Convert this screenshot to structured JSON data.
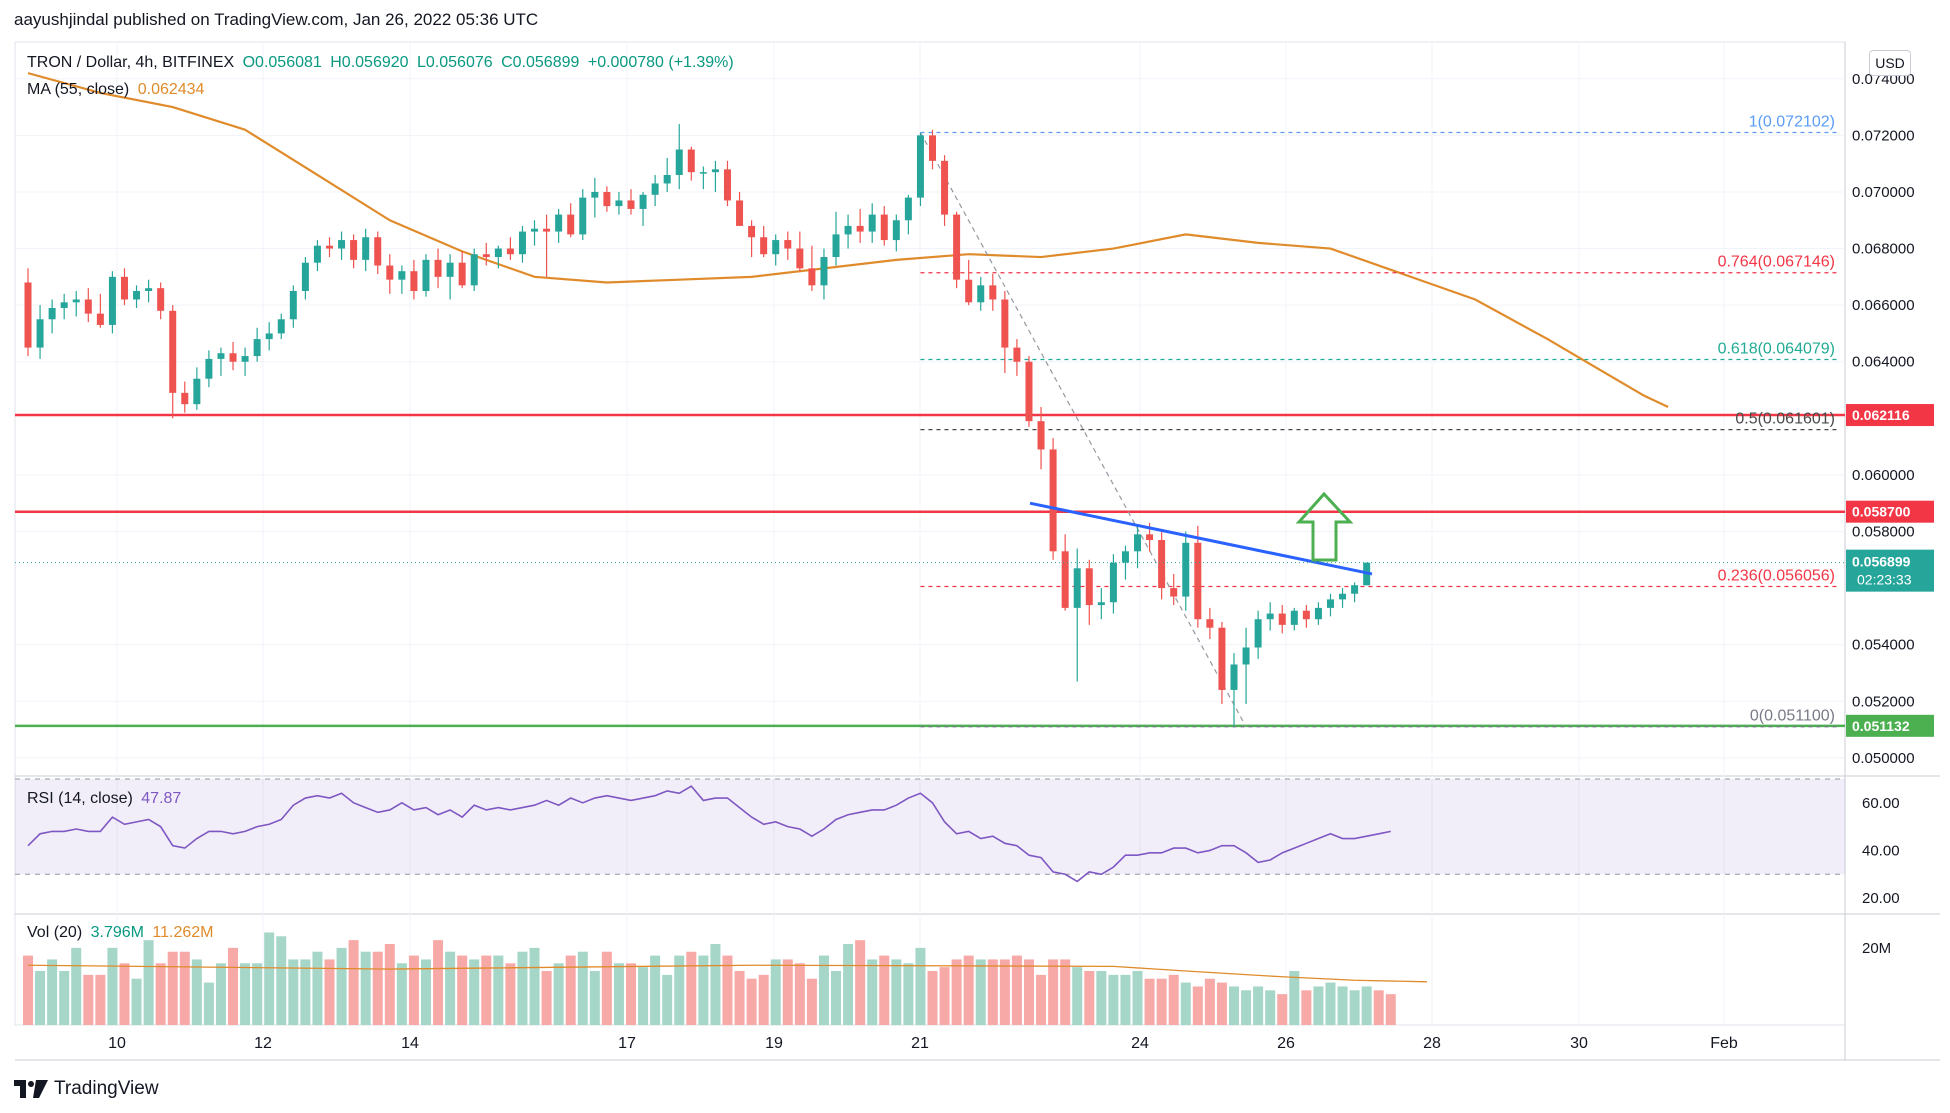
{
  "header": {
    "published_by": "aayushjindal published on TradingView.com, Jan 26, 2022 05:36 UTC"
  },
  "legend": {
    "symbol": "TRON / Dollar, 4h, BITFINEX",
    "open": "O0.056081",
    "high": "H0.056920",
    "low": "L0.056076",
    "close": "C0.056899",
    "change": "+0.000780 (+1.39%)",
    "ma_label": "MA (55, close)",
    "ma_value": "0.062434",
    "rsi_label": "RSI (14, close)",
    "rsi_value": "47.87",
    "vol_label": "Vol (20)",
    "vol_value": "3.796M",
    "vol_ma_value": "11.262M"
  },
  "currency_button": "USD",
  "brand": "TradingView",
  "colors": {
    "up": "#26a69a",
    "down": "#ef5350",
    "ma": "#e08b2b",
    "resistance": "#f23645",
    "support": "#4caf50",
    "trendline": "#2962ff",
    "rsi_line": "#7e57c2",
    "arrow": "#4caf50"
  },
  "chart_data": [
    {
      "type": "candlestick",
      "title": "",
      "x_ticks": [
        "10",
        "12",
        "14",
        "17",
        "19",
        "21",
        "24",
        "26",
        "28",
        "30",
        "Feb"
      ],
      "y_ticks": [
        "0.074000",
        "0.072000",
        "0.070000",
        "0.068000",
        "0.066000",
        "0.064000",
        "0.060000",
        "0.058000",
        "0.054000",
        "0.052000",
        "0.050000"
      ],
      "ylim": [
        0.0495,
        0.0753
      ],
      "candles_ohlc": [
        [
          0.0668,
          0.0673,
          0.0642,
          0.0645
        ],
        [
          0.0645,
          0.066,
          0.0641,
          0.0655
        ],
        [
          0.0655,
          0.0662,
          0.065,
          0.0659
        ],
        [
          0.0659,
          0.0664,
          0.0655,
          0.0661
        ],
        [
          0.0661,
          0.0665,
          0.0656,
          0.0662
        ],
        [
          0.0662,
          0.0666,
          0.0654,
          0.0657
        ],
        [
          0.0657,
          0.0664,
          0.0652,
          0.0653
        ],
        [
          0.0653,
          0.0672,
          0.065,
          0.067
        ],
        [
          0.067,
          0.0673,
          0.066,
          0.0662
        ],
        [
          0.0662,
          0.0667,
          0.0659,
          0.0665
        ],
        [
          0.0665,
          0.0669,
          0.0661,
          0.0666
        ],
        [
          0.0666,
          0.0668,
          0.0655,
          0.0658
        ],
        [
          0.0658,
          0.066,
          0.062,
          0.0629
        ],
        [
          0.0629,
          0.0633,
          0.0622,
          0.0625
        ],
        [
          0.0625,
          0.0638,
          0.0623,
          0.0634
        ],
        [
          0.0634,
          0.0644,
          0.0631,
          0.0641
        ],
        [
          0.0641,
          0.0645,
          0.0635,
          0.0643
        ],
        [
          0.0643,
          0.0647,
          0.0637,
          0.064
        ],
        [
          0.064,
          0.0645,
          0.0635,
          0.0642
        ],
        [
          0.0642,
          0.0652,
          0.064,
          0.0648
        ],
        [
          0.0648,
          0.0654,
          0.0644,
          0.065
        ],
        [
          0.065,
          0.0657,
          0.0648,
          0.0655
        ],
        [
          0.0655,
          0.0667,
          0.0652,
          0.0665
        ],
        [
          0.0665,
          0.0677,
          0.0662,
          0.0675
        ],
        [
          0.0675,
          0.0683,
          0.0672,
          0.0681
        ],
        [
          0.0681,
          0.0684,
          0.0677,
          0.068
        ],
        [
          0.068,
          0.0686,
          0.0676,
          0.0683
        ],
        [
          0.0683,
          0.0685,
          0.0673,
          0.0676
        ],
        [
          0.0676,
          0.0687,
          0.0672,
          0.0684
        ],
        [
          0.0684,
          0.0686,
          0.0671,
          0.0674
        ],
        [
          0.0674,
          0.0678,
          0.0664,
          0.0669
        ],
        [
          0.0669,
          0.0674,
          0.0664,
          0.0672
        ],
        [
          0.0672,
          0.0676,
          0.0662,
          0.0665
        ],
        [
          0.0665,
          0.0678,
          0.0663,
          0.0676
        ],
        [
          0.0676,
          0.068,
          0.0666,
          0.067
        ],
        [
          0.067,
          0.0678,
          0.0662,
          0.0675
        ],
        [
          0.0675,
          0.0679,
          0.0666,
          0.0667
        ],
        [
          0.0667,
          0.068,
          0.0665,
          0.0678
        ],
        [
          0.0678,
          0.0682,
          0.0674,
          0.0677
        ],
        [
          0.0677,
          0.0681,
          0.0673,
          0.068
        ],
        [
          0.068,
          0.0684,
          0.0676,
          0.0678
        ],
        [
          0.0678,
          0.0688,
          0.0675,
          0.0686
        ],
        [
          0.0686,
          0.069,
          0.0681,
          0.0687
        ],
        [
          0.0687,
          0.0692,
          0.067,
          0.0686
        ],
        [
          0.0686,
          0.0694,
          0.0682,
          0.0692
        ],
        [
          0.0692,
          0.0696,
          0.0684,
          0.0685
        ],
        [
          0.0685,
          0.0701,
          0.0683,
          0.0698
        ],
        [
          0.0698,
          0.0705,
          0.0691,
          0.07
        ],
        [
          0.07,
          0.0702,
          0.0693,
          0.0695
        ],
        [
          0.0695,
          0.07,
          0.0692,
          0.0697
        ],
        [
          0.0697,
          0.0701,
          0.0692,
          0.0694
        ],
        [
          0.0694,
          0.07,
          0.0688,
          0.0699
        ],
        [
          0.0699,
          0.0706,
          0.0695,
          0.0703
        ],
        [
          0.0703,
          0.0712,
          0.07,
          0.0706
        ],
        [
          0.0706,
          0.0724,
          0.0701,
          0.0715
        ],
        [
          0.0715,
          0.0716,
          0.0704,
          0.0707
        ],
        [
          0.0707,
          0.0709,
          0.0701,
          0.0707
        ],
        [
          0.0707,
          0.0711,
          0.07,
          0.0708
        ],
        [
          0.0708,
          0.0711,
          0.0695,
          0.0697
        ],
        [
          0.0697,
          0.07,
          0.0688,
          0.0688
        ],
        [
          0.0688,
          0.069,
          0.0677,
          0.0684
        ],
        [
          0.0684,
          0.0688,
          0.0677,
          0.0678
        ],
        [
          0.0678,
          0.0685,
          0.0674,
          0.0683
        ],
        [
          0.0683,
          0.0686,
          0.0676,
          0.068
        ],
        [
          0.068,
          0.0686,
          0.0672,
          0.0673
        ],
        [
          0.0673,
          0.0681,
          0.0665,
          0.0667
        ],
        [
          0.0667,
          0.068,
          0.0662,
          0.0677
        ],
        [
          0.0677,
          0.0693,
          0.0674,
          0.0685
        ],
        [
          0.0685,
          0.0692,
          0.068,
          0.0688
        ],
        [
          0.0688,
          0.0694,
          0.0682,
          0.0686
        ],
        [
          0.0686,
          0.0696,
          0.0682,
          0.0692
        ],
        [
          0.0692,
          0.0695,
          0.0681,
          0.0683
        ],
        [
          0.0683,
          0.0692,
          0.0679,
          0.069
        ],
        [
          0.069,
          0.0699,
          0.0685,
          0.0698
        ],
        [
          0.0698,
          0.0721,
          0.0695,
          0.072
        ],
        [
          0.072,
          0.0722,
          0.0708,
          0.0711
        ],
        [
          0.0711,
          0.0713,
          0.0688,
          0.0692
        ],
        [
          0.0692,
          0.0693,
          0.0666,
          0.0669
        ],
        [
          0.0669,
          0.0676,
          0.066,
          0.0661
        ],
        [
          0.0661,
          0.067,
          0.0658,
          0.0667
        ],
        [
          0.0667,
          0.0671,
          0.0658,
          0.0662
        ],
        [
          0.0662,
          0.0665,
          0.0636,
          0.0645
        ],
        [
          0.0645,
          0.0648,
          0.0635,
          0.064
        ],
        [
          0.064,
          0.0642,
          0.0617,
          0.0619
        ],
        [
          0.0619,
          0.0624,
          0.0602,
          0.0609
        ],
        [
          0.0609,
          0.0613,
          0.057,
          0.0573
        ],
        [
          0.0573,
          0.0579,
          0.0552,
          0.0553
        ],
        [
          0.0553,
          0.0574,
          0.0527,
          0.0567
        ],
        [
          0.0567,
          0.057,
          0.0547,
          0.0554
        ],
        [
          0.0554,
          0.056,
          0.0549,
          0.0555
        ],
        [
          0.0555,
          0.0572,
          0.0551,
          0.0569
        ],
        [
          0.0569,
          0.0575,
          0.0563,
          0.0573
        ],
        [
          0.0573,
          0.0582,
          0.0567,
          0.0579
        ],
        [
          0.0579,
          0.0583,
          0.0573,
          0.0577
        ],
        [
          0.0577,
          0.058,
          0.0556,
          0.056
        ],
        [
          0.056,
          0.0565,
          0.0554,
          0.0557
        ],
        [
          0.0557,
          0.058,
          0.0552,
          0.0576
        ],
        [
          0.0576,
          0.0582,
          0.0546,
          0.0549
        ],
        [
          0.0549,
          0.0553,
          0.0542,
          0.0546
        ],
        [
          0.0546,
          0.0548,
          0.0519,
          0.0524
        ],
        [
          0.0524,
          0.0537,
          0.0511,
          0.0533
        ],
        [
          0.0533,
          0.0546,
          0.0519,
          0.0539
        ],
        [
          0.0539,
          0.0552,
          0.0535,
          0.0549
        ],
        [
          0.0549,
          0.0555,
          0.0545,
          0.0551
        ],
        [
          0.0551,
          0.0554,
          0.0544,
          0.0547
        ],
        [
          0.0547,
          0.0553,
          0.0545,
          0.0552
        ],
        [
          0.0552,
          0.0554,
          0.0546,
          0.0549
        ],
        [
          0.0549,
          0.0555,
          0.0547,
          0.0553
        ],
        [
          0.0553,
          0.0558,
          0.055,
          0.0556
        ],
        [
          0.0556,
          0.056,
          0.0553,
          0.0558
        ],
        [
          0.0558,
          0.0562,
          0.0555,
          0.0561
        ],
        [
          0.0561,
          0.0569,
          0.0561,
          0.0569
        ]
      ],
      "ma_55_points": [
        [
          0,
          0.0742
        ],
        [
          6,
          0.0735
        ],
        [
          12,
          0.073
        ],
        [
          18,
          0.0722
        ],
        [
          24,
          0.0706
        ],
        [
          30,
          0.069
        ],
        [
          36,
          0.0679
        ],
        [
          42,
          0.067
        ],
        [
          48,
          0.0668
        ],
        [
          54,
          0.0669
        ],
        [
          60,
          0.067
        ],
        [
          66,
          0.0673
        ],
        [
          72,
          0.0676
        ],
        [
          78,
          0.0678
        ],
        [
          84,
          0.0677
        ],
        [
          90,
          0.068
        ],
        [
          96,
          0.0685
        ],
        [
          102,
          0.0682
        ],
        [
          108,
          0.068
        ],
        [
          114,
          0.0671
        ],
        [
          120,
          0.0662
        ],
        [
          126,
          0.0648
        ],
        [
          130,
          0.0638
        ],
        [
          132,
          0.0633
        ],
        [
          134,
          0.0628
        ],
        [
          136,
          0.0624
        ]
      ],
      "lines": [
        {
          "name": "0.062116",
          "value": 0.062116
        },
        {
          "name": "0.058700",
          "value": 0.0587
        },
        {
          "name": "0.051132",
          "value": 0.051132
        }
      ],
      "fibonacci": [
        {
          "label": "1(0.072102)",
          "value": 0.072102
        },
        {
          "label": "0.764(0.067146)",
          "value": 0.067146
        },
        {
          "label": "0.618(0.064079)",
          "value": 0.064079
        },
        {
          "label": "0.5(0.061601)",
          "value": 0.061601
        },
        {
          "label": "0.236(0.056056)",
          "value": 0.056056
        },
        {
          "label": "0(0.051100)",
          "value": 0.0511
        }
      ],
      "last_price": {
        "value": 0.056899,
        "label": "0.056899",
        "countdown": "02:23:33"
      },
      "trendline": {
        "from": [
          0.0588,
          0.059
        ],
        "to": [
          0.0676,
          0.0565
        ]
      }
    },
    {
      "type": "line",
      "title": "",
      "y_ticks": [
        "60.00",
        "40.00",
        "20.00"
      ],
      "ylim": [
        15,
        70
      ],
      "band": [
        30,
        70
      ],
      "values": [
        42,
        47,
        48,
        48,
        49,
        48,
        48,
        54,
        51,
        52,
        53,
        50,
        42,
        41,
        45,
        48,
        48,
        47,
        48,
        50,
        51,
        53,
        59,
        62,
        63,
        62,
        64,
        60,
        58,
        56,
        57,
        60,
        57,
        58,
        55,
        57,
        54,
        59,
        57,
        58,
        57,
        58,
        59,
        61,
        59,
        62,
        60,
        62,
        63,
        62,
        61,
        62,
        63,
        65,
        64,
        67,
        61,
        62,
        62,
        58,
        54,
        51,
        52,
        50,
        49,
        46,
        49,
        53,
        55,
        56,
        57,
        57,
        59,
        62,
        64,
        60,
        52,
        47,
        48,
        45,
        46,
        43,
        42,
        38,
        37,
        31,
        30,
        27,
        31,
        30,
        33,
        38,
        38,
        39,
        39,
        41,
        41,
        39,
        40,
        42,
        42,
        39,
        35,
        36,
        39,
        41,
        43,
        45,
        47,
        45,
        45,
        46,
        47,
        48
      ]
    },
    {
      "type": "bar",
      "title": "",
      "y_ticks": [
        "20M"
      ],
      "ylim": [
        0,
        28
      ],
      "values": [
        18,
        14,
        17,
        14,
        20,
        13,
        13,
        20,
        16,
        12,
        22,
        16,
        19,
        19,
        17,
        11,
        16,
        20,
        16,
        16,
        24,
        23,
        17,
        17,
        19,
        17,
        20,
        22,
        19,
        19,
        21,
        16,
        18,
        17,
        22,
        19,
        18,
        17,
        18,
        18,
        16,
        19,
        20,
        14,
        16,
        18,
        19,
        14,
        19,
        16,
        16,
        15,
        18,
        13,
        18,
        19,
        18,
        21,
        18,
        14,
        12,
        13,
        17,
        17,
        16,
        12,
        18,
        14,
        21,
        22,
        17,
        18,
        17,
        16,
        20,
        14,
        15,
        17,
        18,
        17,
        17,
        17,
        18,
        17,
        13,
        17,
        17,
        15,
        14,
        14,
        13,
        13,
        14,
        12,
        12,
        13,
        11,
        10,
        12,
        11,
        10,
        9,
        10,
        9,
        8,
        14,
        9,
        10,
        11,
        10,
        9,
        10,
        9,
        8
      ],
      "vol_ma_points": [
        [
          0,
          15.5
        ],
        [
          30,
          14.5
        ],
        [
          60,
          15.5
        ],
        [
          90,
          15.2
        ],
        [
          96,
          14.0
        ],
        [
          104,
          12.5
        ],
        [
          110,
          11.6
        ],
        [
          116,
          11.2
        ]
      ]
    }
  ]
}
